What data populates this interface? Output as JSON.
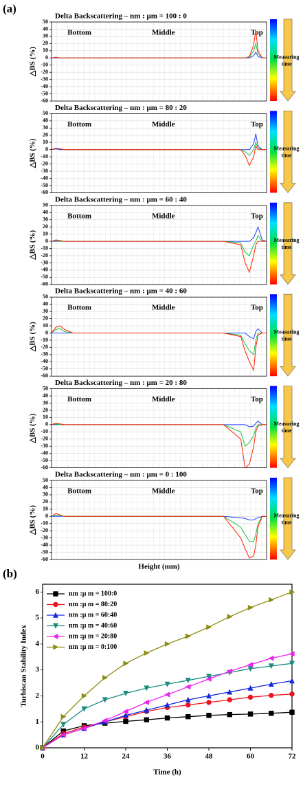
{
  "chart_data": [
    {
      "type": "line",
      "panel": "(a)",
      "title": "Delta Backscattering – nm : μm = 100 : 0",
      "ylabel": "△BS (%)",
      "annotations": [
        "Bottom",
        "Middle",
        "Top"
      ],
      "colorbar_label": [
        "Measuring",
        "time"
      ],
      "x": [
        0,
        2,
        4,
        6,
        10,
        40,
        80,
        88,
        90,
        92,
        94,
        95,
        96,
        98,
        100
      ],
      "xlim": [
        0,
        100
      ],
      "ylim": [
        -60,
        50
      ],
      "yticks": [
        50,
        40,
        30,
        20,
        10,
        0,
        -10,
        -20,
        -30,
        -40,
        -50,
        -60
      ],
      "grid": true,
      "series": [
        {
          "color": "#2040ff",
          "values": [
            0,
            0,
            0,
            0,
            0,
            0,
            0,
            0,
            0,
            0,
            3,
            8,
            2,
            0,
            0
          ]
        },
        {
          "color": "#20c040",
          "values": [
            0,
            1,
            0,
            0,
            0,
            0,
            0,
            0,
            0,
            1,
            10,
            20,
            6,
            0,
            0
          ]
        },
        {
          "color": "#ff2000",
          "values": [
            0,
            1,
            0,
            0,
            0,
            0,
            0,
            0,
            0,
            2,
            18,
            38,
            10,
            0,
            0
          ]
        }
      ]
    },
    {
      "type": "line",
      "title": "Delta Backscattering – nm : μm = 80 : 20",
      "ylabel": "△BS (%)",
      "annotations": [
        "Bottom",
        "Middle",
        "Top"
      ],
      "colorbar_label": [
        "Measuring",
        "time"
      ],
      "x": [
        0,
        2,
        4,
        6,
        10,
        40,
        80,
        88,
        90,
        92,
        94,
        95,
        96,
        98,
        100
      ],
      "xlim": [
        0,
        100
      ],
      "ylim": [
        -60,
        50
      ],
      "yticks": [
        50,
        40,
        30,
        20,
        10,
        0,
        -10,
        -20,
        -30,
        -40,
        -50,
        -60
      ],
      "grid": true,
      "series": [
        {
          "color": "#2040ff",
          "values": [
            0,
            1,
            0,
            0,
            0,
            0,
            0,
            0,
            0,
            0,
            8,
            22,
            5,
            0,
            0
          ]
        },
        {
          "color": "#20c040",
          "values": [
            0,
            2,
            1,
            0,
            0,
            0,
            0,
            0,
            -3,
            -8,
            0,
            10,
            2,
            0,
            0
          ]
        },
        {
          "color": "#ff2000",
          "values": [
            0,
            2,
            1,
            0,
            0,
            0,
            0,
            0,
            -8,
            -22,
            -10,
            5,
            0,
            0,
            0
          ]
        }
      ]
    },
    {
      "type": "line",
      "title": "Delta Backscattering – nm : μm = 60 : 40",
      "ylabel": "△BS (%)",
      "annotations": [
        "Bottom",
        "Middle",
        "Top"
      ],
      "colorbar_label": [
        "Measuring",
        "time"
      ],
      "x": [
        0,
        2,
        4,
        6,
        10,
        40,
        80,
        88,
        90,
        92,
        94,
        95,
        96,
        98,
        100
      ],
      "xlim": [
        0,
        100
      ],
      "ylim": [
        -60,
        50
      ],
      "yticks": [
        50,
        40,
        30,
        20,
        10,
        0,
        -10,
        -20,
        -30,
        -40,
        -50,
        -60
      ],
      "grid": true,
      "series": [
        {
          "color": "#2040ff",
          "values": [
            0,
            0,
            0,
            0,
            0,
            0,
            0,
            0,
            0,
            0,
            5,
            12,
            20,
            2,
            0
          ]
        },
        {
          "color": "#20c040",
          "values": [
            0,
            1,
            0,
            0,
            0,
            0,
            0,
            -2,
            -15,
            -20,
            -5,
            0,
            8,
            0,
            0
          ]
        },
        {
          "color": "#ff2000",
          "values": [
            0,
            2,
            1,
            0,
            0,
            0,
            0,
            -5,
            -30,
            -43,
            -20,
            -5,
            0,
            0,
            0
          ]
        }
      ]
    },
    {
      "type": "line",
      "title": "Delta Backscattering – nm : μm = 40 : 60",
      "ylabel": "△BS (%)",
      "annotations": [
        "Bottom",
        "Middle",
        "Top"
      ],
      "colorbar_label": [
        "Measuring",
        "time"
      ],
      "x": [
        0,
        2,
        4,
        6,
        10,
        40,
        80,
        88,
        90,
        92,
        94,
        95,
        96,
        98,
        100
      ],
      "xlim": [
        0,
        100
      ],
      "ylim": [
        -60,
        50
      ],
      "yticks": [
        50,
        40,
        30,
        20,
        10,
        0,
        -10,
        -20,
        -30,
        -40,
        -50,
        -60
      ],
      "grid": true,
      "series": [
        {
          "color": "#2040ff",
          "values": [
            0,
            0,
            0,
            0,
            0,
            0,
            0,
            0,
            0,
            -5,
            -8,
            2,
            6,
            0,
            0
          ]
        },
        {
          "color": "#20c040",
          "values": [
            0,
            5,
            6,
            2,
            0,
            0,
            0,
            -3,
            -15,
            -25,
            -30,
            -10,
            0,
            0,
            0
          ]
        },
        {
          "color": "#ff2000",
          "values": [
            0,
            8,
            10,
            5,
            0,
            0,
            0,
            -5,
            -25,
            -40,
            -52,
            -20,
            -3,
            0,
            0
          ]
        }
      ]
    },
    {
      "type": "line",
      "title": "Delta Backscattering – nm : μm = 20 : 80",
      "ylabel": "△BS (%)",
      "annotations": [
        "Bottom",
        "Middle",
        "Top"
      ],
      "colorbar_label": [
        "Measuring",
        "time"
      ],
      "x": [
        0,
        2,
        4,
        6,
        10,
        40,
        80,
        88,
        90,
        92,
        94,
        95,
        96,
        98,
        100
      ],
      "xlim": [
        0,
        100
      ],
      "ylim": [
        -60,
        50
      ],
      "yticks": [
        50,
        40,
        30,
        20,
        10,
        0,
        -10,
        -20,
        -30,
        -40,
        -50,
        -60
      ],
      "grid": true,
      "series": [
        {
          "color": "#2040ff",
          "values": [
            0,
            0,
            0,
            0,
            0,
            0,
            0,
            0,
            0,
            -3,
            -2,
            2,
            5,
            0,
            0
          ]
        },
        {
          "color": "#20c040",
          "values": [
            0,
            1,
            0,
            0,
            0,
            0,
            0,
            -10,
            -30,
            -25,
            -15,
            -5,
            0,
            0,
            0
          ]
        },
        {
          "color": "#ff2000",
          "values": [
            0,
            2,
            1,
            0,
            0,
            0,
            0,
            -20,
            -60,
            -55,
            -30,
            -10,
            -2,
            0,
            0
          ]
        }
      ]
    },
    {
      "type": "line",
      "title": "Delta Backscattering – nm : μm = 0 : 100",
      "ylabel": "△BS (%)",
      "xlabel": "Height (mm)",
      "annotations": [
        "Bottom",
        "Middle",
        "Top"
      ],
      "colorbar_label": [
        "Measuring",
        "time"
      ],
      "x": [
        0,
        2,
        4,
        6,
        10,
        40,
        80,
        88,
        90,
        92,
        94,
        95,
        96,
        98,
        100
      ],
      "xlim": [
        0,
        100
      ],
      "ylim": [
        -60,
        50
      ],
      "yticks": [
        50,
        40,
        30,
        20,
        10,
        0,
        -10,
        -20,
        -30,
        -40,
        -50,
        -60
      ],
      "grid": true,
      "series": [
        {
          "color": "#2040ff",
          "values": [
            0,
            0,
            0,
            0,
            0,
            0,
            0,
            -2,
            -3,
            -5,
            -5,
            -3,
            -2,
            0,
            0
          ]
        },
        {
          "color": "#20c040",
          "values": [
            0,
            2,
            1,
            0,
            0,
            0,
            0,
            -15,
            -25,
            -35,
            -35,
            -25,
            -10,
            0,
            0
          ]
        },
        {
          "color": "#ff2000",
          "values": [
            0,
            4,
            2,
            0,
            0,
            0,
            0,
            -30,
            -45,
            -58,
            -55,
            -40,
            -15,
            0,
            0
          ]
        }
      ]
    },
    {
      "type": "line",
      "panel": "(b)",
      "ylabel": "Turbiscan Stability Index",
      "xlabel": "Time (h)",
      "x": [
        0,
        6,
        12,
        18,
        24,
        30,
        36,
        42,
        48,
        54,
        60,
        66,
        72
      ],
      "xlim": [
        0,
        72
      ],
      "ylim": [
        0,
        6.3
      ],
      "xticks": [
        0,
        12,
        24,
        36,
        48,
        60,
        72
      ],
      "yticks": [
        0,
        1,
        2,
        3,
        4,
        5,
        6
      ],
      "grid": false,
      "legend": "upper left",
      "series": [
        {
          "name": "nm :μ m = 100:0",
          "color": "#000000",
          "marker": "square",
          "values": [
            0,
            0.65,
            0.85,
            0.95,
            1.02,
            1.08,
            1.15,
            1.2,
            1.25,
            1.28,
            1.3,
            1.33,
            1.37
          ]
        },
        {
          "name": "nm :μ m = 80:20",
          "color": "#e8141e",
          "marker": "circle",
          "values": [
            0,
            0.55,
            0.8,
            1.0,
            1.2,
            1.4,
            1.55,
            1.65,
            1.75,
            1.85,
            1.95,
            2.02,
            2.07
          ]
        },
        {
          "name": "nm :μ m = 60:40",
          "color": "#1428dc",
          "marker": "triangle-up",
          "values": [
            0,
            0.5,
            0.75,
            1.0,
            1.25,
            1.45,
            1.65,
            1.85,
            2.0,
            2.15,
            2.3,
            2.45,
            2.58
          ]
        },
        {
          "name": "nm :μ m = 40:60",
          "color": "#1a8c80",
          "marker": "triangle-down",
          "values": [
            0,
            0.9,
            1.5,
            1.85,
            2.1,
            2.3,
            2.45,
            2.6,
            2.75,
            2.9,
            3.05,
            3.15,
            3.25
          ]
        },
        {
          "name": "nm :μ m = 20:80",
          "color": "#f020f0",
          "marker": "triangle-left",
          "values": [
            0,
            0.5,
            0.75,
            1.05,
            1.4,
            1.75,
            2.05,
            2.35,
            2.65,
            2.95,
            3.2,
            3.45,
            3.62
          ]
        },
        {
          "name": "nm :μ m = 0:100",
          "color": "#8c8c14",
          "marker": "triangle-right",
          "values": [
            0,
            1.2,
            2.0,
            2.7,
            3.25,
            3.65,
            4.0,
            4.3,
            4.65,
            5.05,
            5.4,
            5.7,
            6.0
          ]
        }
      ]
    }
  ]
}
